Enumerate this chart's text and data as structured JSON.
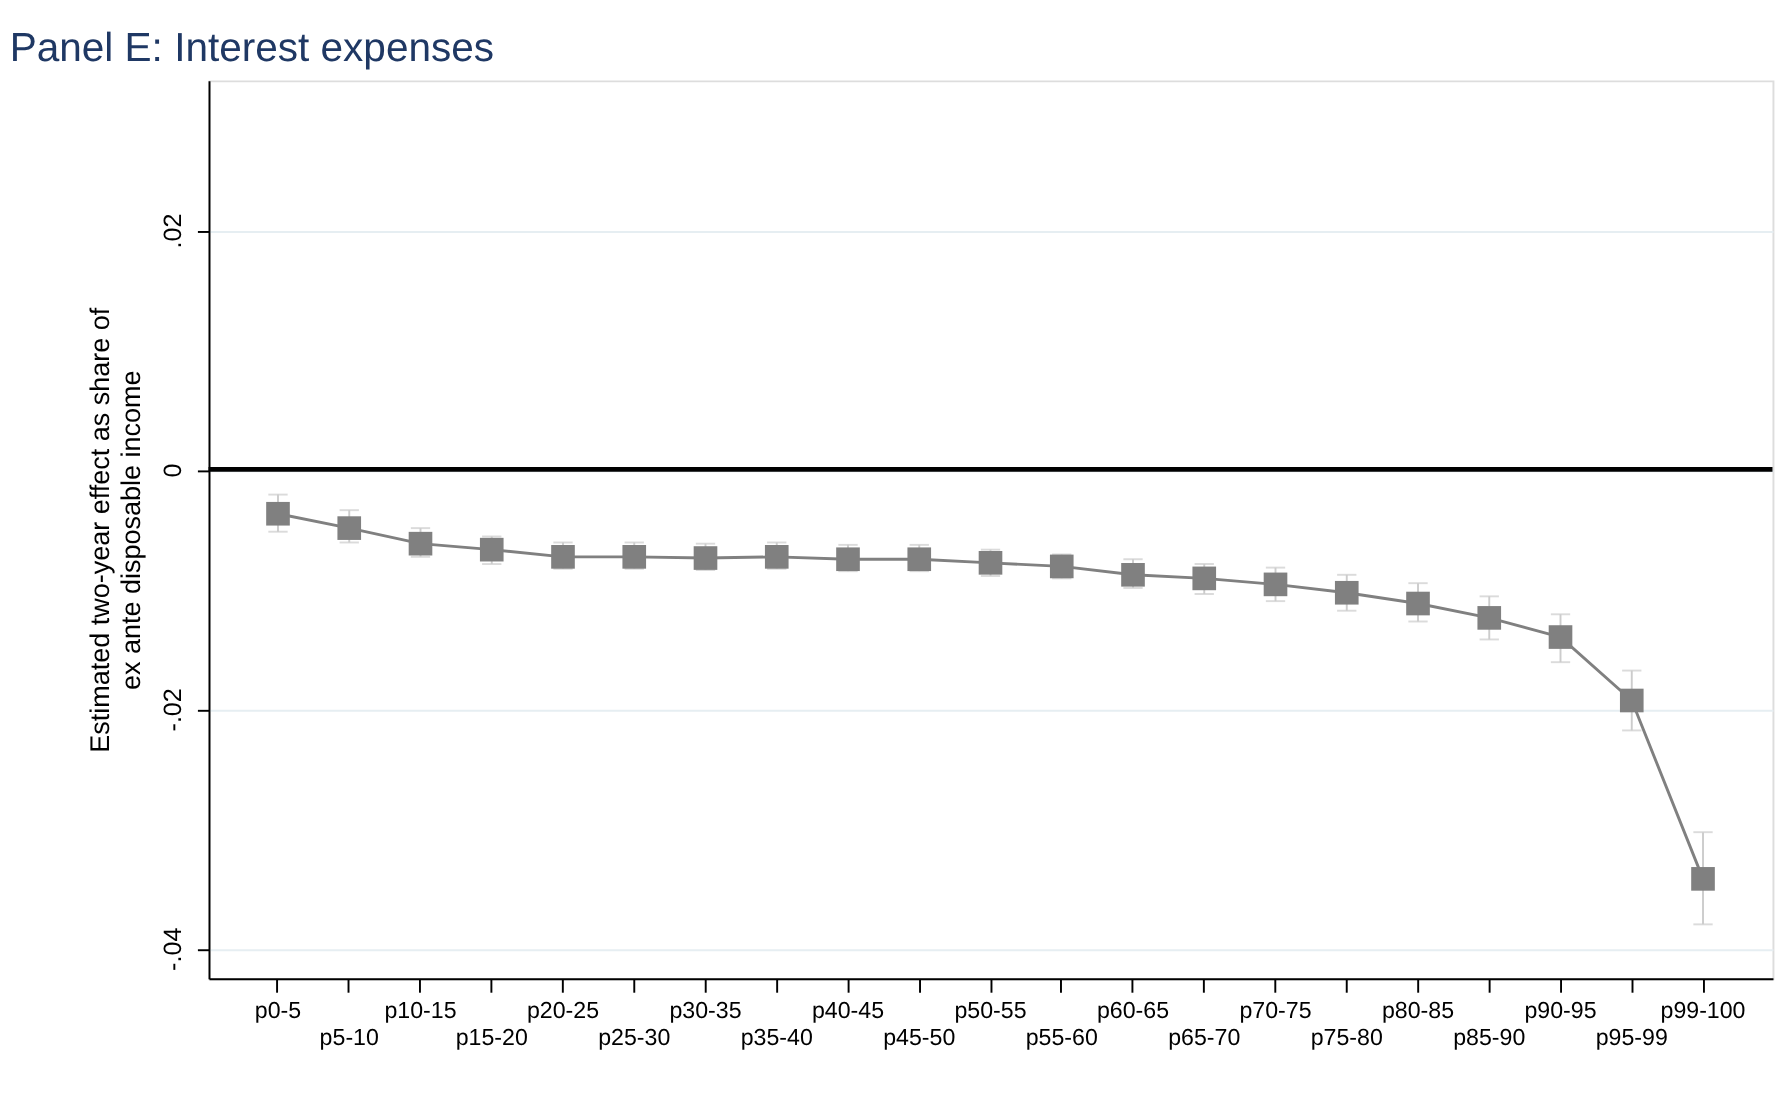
{
  "chart_data": {
    "type": "line",
    "title": "Panel E: Interest expenses",
    "ylabel": "Estimated two-year effect as share of\nex ante disposable income",
    "categories": [
      "p0-5",
      "p5-10",
      "p10-15",
      "p15-20",
      "p20-25",
      "p25-30",
      "p30-35",
      "p35-40",
      "p40-45",
      "p45-50",
      "p50-55",
      "p55-60",
      "p60-65",
      "p65-70",
      "p70-75",
      "p75-80",
      "p80-85",
      "p85-90",
      "p90-95",
      "p95-99",
      "p99-100"
    ],
    "series": [
      {
        "color": "#808080",
        "values": [
          -0.0037,
          -0.0049,
          -0.0062,
          -0.0067,
          -0.0073,
          -0.0073,
          -0.0074,
          -0.0073,
          -0.0075,
          -0.0075,
          -0.0078,
          -0.0081,
          -0.0088,
          -0.0091,
          -0.0096,
          -0.0103,
          -0.0112,
          -0.0124,
          -0.014,
          -0.0193,
          -0.0342
        ],
        "errors": [
          [
            -0.0052,
            -0.0021
          ],
          [
            -0.0061,
            -0.0034
          ],
          [
            -0.0073,
            -0.0049
          ],
          [
            -0.0079,
            -0.0056
          ],
          [
            -0.0083,
            -0.0061
          ],
          [
            -0.0083,
            -0.0061
          ],
          [
            -0.0084,
            -0.0062
          ],
          [
            -0.0083,
            -0.0061
          ],
          [
            -0.0085,
            -0.0063
          ],
          [
            -0.0085,
            -0.0063
          ],
          [
            -0.0089,
            -0.0067
          ],
          [
            -0.0091,
            -0.0071
          ],
          [
            -0.0099,
            -0.0075
          ],
          [
            -0.0104,
            -0.0079
          ],
          [
            -0.011,
            -0.0082
          ],
          [
            -0.0118,
            -0.0088
          ],
          [
            -0.0127,
            -0.0095
          ],
          [
            -0.0142,
            -0.0106
          ],
          [
            -0.0161,
            -0.0121
          ],
          [
            -0.0218,
            -0.0168
          ],
          [
            -0.038,
            -0.0303
          ]
        ]
      }
    ],
    "ylim": [
      -0.0425,
      0.0325
    ],
    "yticks": [
      {
        "value": 0.02,
        "label": ".02"
      },
      {
        "value": 0,
        "label": "0"
      },
      {
        "value": -0.02,
        "label": "-.02"
      },
      {
        "value": -0.04,
        "label": "-.04"
      }
    ],
    "grid": "y",
    "marker": "square",
    "line_style": "solid",
    "ref_lines": [
      {
        "axis": "y",
        "value": 0,
        "color": "#000000"
      }
    ]
  }
}
